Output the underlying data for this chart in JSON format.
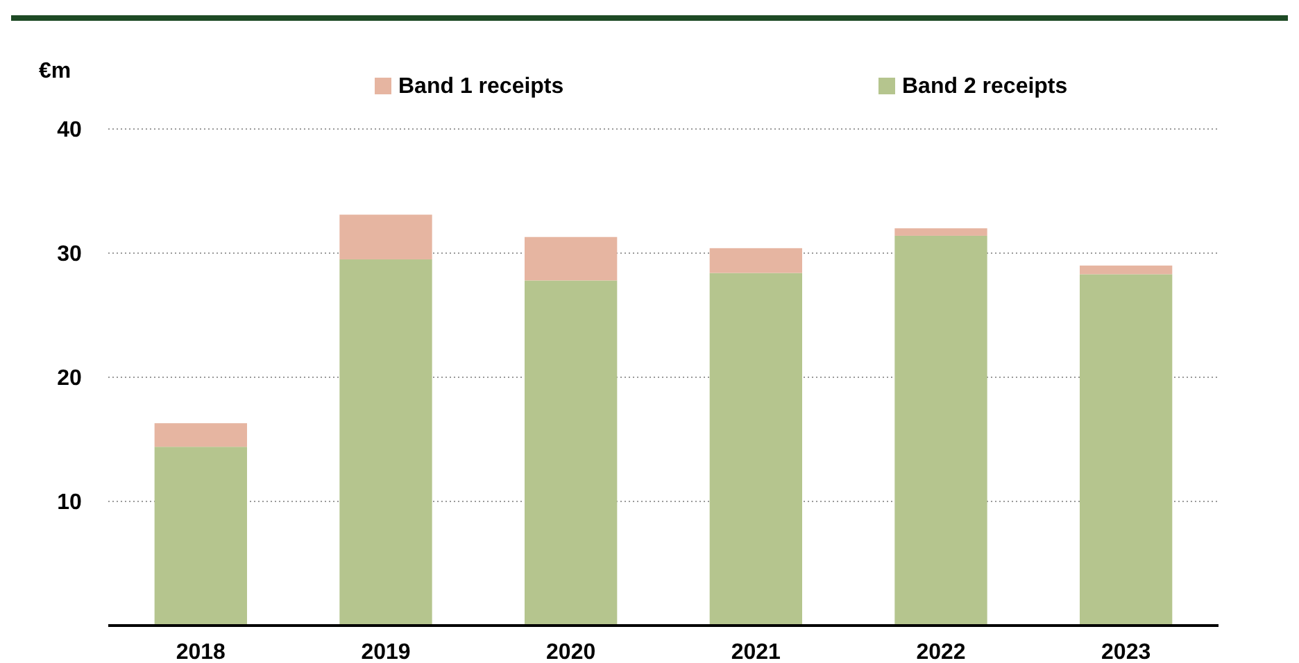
{
  "chart_data": {
    "type": "bar",
    "stacked": true,
    "ylabel": "€m",
    "categories": [
      "2018",
      "2019",
      "2020",
      "2021",
      "2022",
      "2023"
    ],
    "series": [
      {
        "name": "Band 2 receipts",
        "color": "#b5c58e",
        "values": [
          14.4,
          29.5,
          27.8,
          28.4,
          31.4,
          28.3
        ]
      },
      {
        "name": "Band 1 receipts",
        "color": "#e6b5a1",
        "values": [
          1.9,
          3.6,
          3.5,
          2.0,
          0.6,
          0.7
        ]
      }
    ],
    "ylim": [
      0,
      40
    ],
    "yticks": [
      10,
      20,
      30,
      40
    ],
    "grid": "y",
    "legend": "top"
  }
}
